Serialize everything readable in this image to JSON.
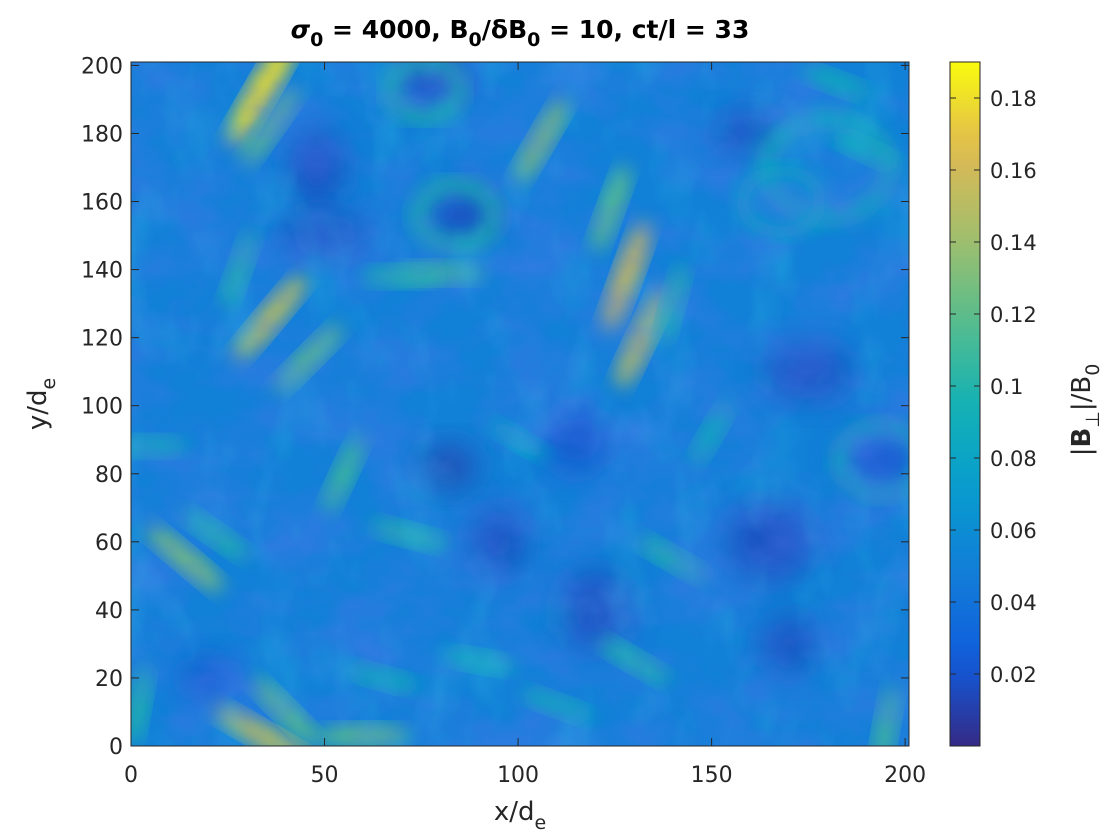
{
  "chart_data": {
    "type": "heatmap",
    "title": {
      "sigma": "σ",
      "sigma_sub": "0",
      "part1": " = 4000, B",
      "b_sub_1": "0",
      "part2": "/δB",
      "b_sub_2": "0",
      "part3": " = 10, ct/l = 33"
    },
    "xlabel": {
      "main": "x/d",
      "sub": "e"
    },
    "ylabel": {
      "main": "y/d",
      "sub": "e"
    },
    "colorbar_label": {
      "pre": "|",
      "bold": "B",
      "sub": "⊥",
      "mid": "|/B",
      "sub2": "0"
    },
    "xlim": [
      0,
      201
    ],
    "ylim": [
      0,
      201
    ],
    "xticks": [
      0,
      50,
      100,
      150,
      200
    ],
    "yticks": [
      0,
      20,
      40,
      60,
      80,
      100,
      120,
      140,
      160,
      180,
      200
    ],
    "clim": [
      0.0,
      0.19
    ],
    "colorbar_ticks": [
      0.02,
      0.04,
      0.06,
      0.08,
      0.1,
      0.12,
      0.14,
      0.16,
      0.18
    ],
    "colorbar_tick_labels": [
      "0.02",
      "0.04",
      "0.06",
      "0.08",
      "0.1",
      "0.12",
      "0.14",
      "0.16",
      "0.18"
    ],
    "colormap": "parula",
    "background_level": 0.05,
    "features": [
      {
        "x": 34,
        "y": 193,
        "value": 0.18
      },
      {
        "x": 36,
        "y": 182,
        "value": 0.12
      },
      {
        "x": 36,
        "y": 126,
        "value": 0.15
      },
      {
        "x": 46,
        "y": 114,
        "value": 0.12
      },
      {
        "x": 28,
        "y": 140,
        "value": 0.1
      },
      {
        "x": 55,
        "y": 80,
        "value": 0.11
      },
      {
        "x": 128,
        "y": 138,
        "value": 0.16
      },
      {
        "x": 132,
        "y": 120,
        "value": 0.15
      },
      {
        "x": 124,
        "y": 158,
        "value": 0.12
      },
      {
        "x": 106,
        "y": 178,
        "value": 0.13
      },
      {
        "x": 140,
        "y": 130,
        "value": 0.1
      },
      {
        "x": 80,
        "y": 139,
        "value": 0.11
      },
      {
        "x": 70,
        "y": 138,
        "value": 0.1
      },
      {
        "x": 14,
        "y": 55,
        "value": 0.13
      },
      {
        "x": 22,
        "y": 62,
        "value": 0.1
      },
      {
        "x": 40,
        "y": 10,
        "value": 0.12
      },
      {
        "x": 34,
        "y": 3,
        "value": 0.15
      },
      {
        "x": 60,
        "y": 3,
        "value": 0.12
      },
      {
        "x": 72,
        "y": 62,
        "value": 0.1
      },
      {
        "x": 130,
        "y": 25,
        "value": 0.1
      },
      {
        "x": 140,
        "y": 55,
        "value": 0.1
      },
      {
        "x": 182,
        "y": 195,
        "value": 0.09
      },
      {
        "x": 190,
        "y": 175,
        "value": 0.09
      },
      {
        "x": 195,
        "y": 5,
        "value": 0.11
      },
      {
        "x": 5,
        "y": 88,
        "value": 0.09
      },
      {
        "x": 110,
        "y": 12,
        "value": 0.09
      },
      {
        "x": 90,
        "y": 25,
        "value": 0.09
      },
      {
        "x": 150,
        "y": 92,
        "value": 0.09
      },
      {
        "x": 100,
        "y": 90,
        "value": 0.08
      },
      {
        "x": 65,
        "y": 20,
        "value": 0.09
      },
      {
        "x": 2,
        "y": 12,
        "value": 0.1
      }
    ],
    "vortices": [
      {
        "x": 84,
        "y": 156,
        "r": 10,
        "value": 0.1
      },
      {
        "x": 76,
        "y": 193,
        "r": 9,
        "value": 0.1
      },
      {
        "x": 194,
        "y": 84,
        "r": 11,
        "value": 0.09
      },
      {
        "x": 180,
        "y": 170,
        "r": 16,
        "value": 0.09
      },
      {
        "x": 168,
        "y": 160,
        "r": 10,
        "value": 0.08
      }
    ],
    "dark_regions": [
      {
        "x": 82,
        "y": 82,
        "value": 0.01
      },
      {
        "x": 86,
        "y": 156,
        "value": 0.015
      },
      {
        "x": 194,
        "y": 84,
        "value": 0.02
      },
      {
        "x": 48,
        "y": 170,
        "value": 0.015
      },
      {
        "x": 160,
        "y": 180,
        "value": 0.015
      },
      {
        "x": 175,
        "y": 110,
        "value": 0.015
      },
      {
        "x": 95,
        "y": 60,
        "value": 0.015
      },
      {
        "x": 120,
        "y": 40,
        "value": 0.015
      },
      {
        "x": 50,
        "y": 150,
        "value": 0.015
      },
      {
        "x": 170,
        "y": 30,
        "value": 0.015
      },
      {
        "x": 115,
        "y": 90,
        "value": 0.02
      },
      {
        "x": 165,
        "y": 60,
        "value": 0.015
      },
      {
        "x": 20,
        "y": 20,
        "value": 0.02
      },
      {
        "x": 78,
        "y": 196,
        "value": 0.015
      }
    ]
  }
}
